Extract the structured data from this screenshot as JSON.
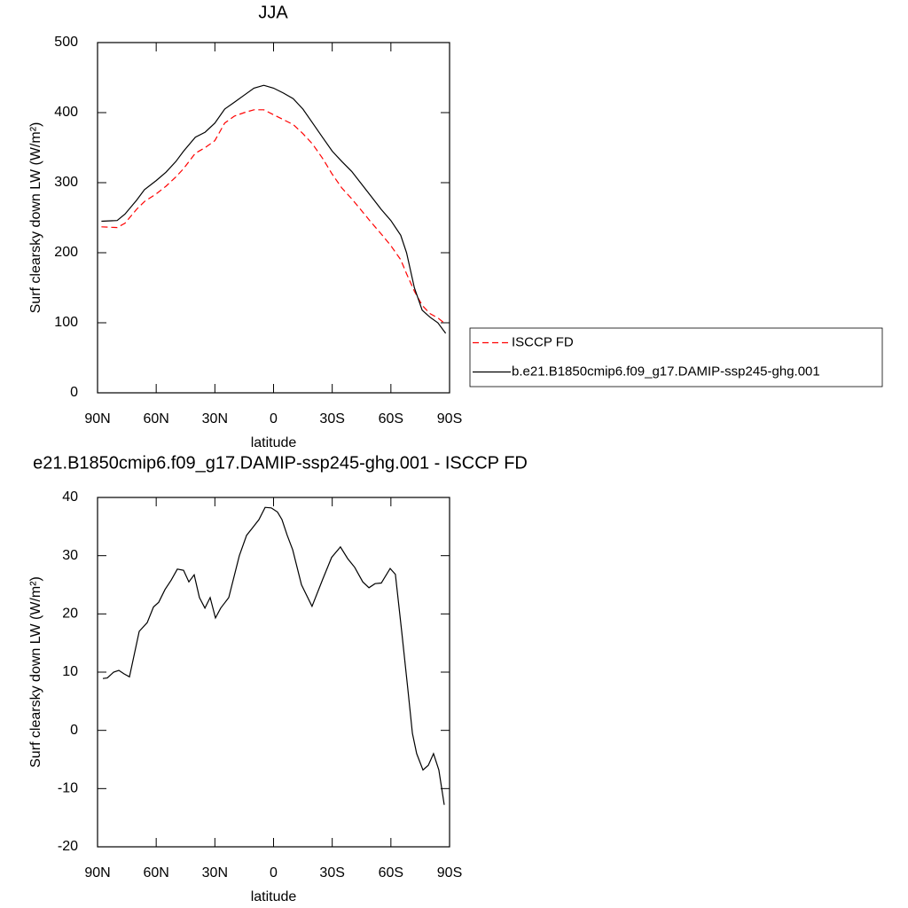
{
  "chart_data": [
    {
      "type": "line",
      "title": "JJA",
      "xlabel": "latitude",
      "ylabel": "Surf clearsky down LW (W/m²)",
      "xlim": [
        90,
        -90
      ],
      "ylim": [
        0,
        500
      ],
      "xticks": [
        {
          "value": 90,
          "label": "90N"
        },
        {
          "value": 60,
          "label": "60N"
        },
        {
          "value": 30,
          "label": "30N"
        },
        0,
        {
          "value": -30,
          "label": "30S"
        },
        {
          "value": -60,
          "label": "60S"
        },
        {
          "value": -90,
          "label": "90S"
        }
      ],
      "yticks": [
        0,
        100,
        200,
        300,
        400,
        500
      ],
      "legend": "right",
      "x": [
        88,
        80,
        76,
        70,
        66,
        60,
        55,
        50,
        46,
        40,
        35,
        30,
        25,
        20,
        15,
        10,
        5,
        0,
        -5,
        -10,
        -15,
        -20,
        -25,
        -30,
        -35,
        -40,
        -45,
        -50,
        -55,
        -60,
        -65,
        -68,
        -72,
        -76,
        -80,
        -84,
        -88
      ],
      "series": [
        {
          "name": "ISCCP FD",
          "color": "#ff0000",
          "dash": true,
          "values": [
            237,
            236,
            242,
            262,
            273,
            284,
            295,
            308,
            320,
            342,
            350,
            360,
            385,
            395,
            400,
            404,
            404,
            397,
            390,
            383,
            370,
            355,
            335,
            312,
            292,
            277,
            260,
            243,
            227,
            210,
            190,
            170,
            145,
            125,
            113,
            107,
            98
          ]
        },
        {
          "name": "b.e21.B1850cmip6.f09_g17.DAMIP-ssp245-ghg.001",
          "color": "#000000",
          "dash": false,
          "values": [
            245,
            246,
            255,
            275,
            290,
            303,
            315,
            330,
            345,
            365,
            372,
            385,
            405,
            415,
            425,
            435,
            439,
            435,
            428,
            420,
            405,
            385,
            365,
            345,
            330,
            316,
            298,
            280,
            262,
            246,
            225,
            200,
            150,
            118,
            108,
            100,
            85
          ]
        }
      ]
    },
    {
      "type": "line",
      "title": "e21.B1850cmip6.f09_g17.DAMIP-ssp245-ghg.001 - ISCCP FD",
      "xlabel": "latitude",
      "ylabel": "Surf clearsky down LW (W/m²)",
      "xlim": [
        90,
        -90
      ],
      "ylim": [
        -20,
        40
      ],
      "xticks": [
        {
          "value": 90,
          "label": "90N"
        },
        {
          "value": 60,
          "label": "60N"
        },
        {
          "value": 30,
          "label": "30N"
        },
        0,
        {
          "value": -30,
          "label": "30S"
        },
        {
          "value": -60,
          "label": "60S"
        },
        {
          "value": -90,
          "label": "90S"
        }
      ],
      "yticks": [
        -20,
        -10,
        0,
        10,
        20,
        30,
        40
      ],
      "x": [
        87.3,
        85,
        81.8,
        79.1,
        76.4,
        73.7,
        68.7,
        64.6,
        61.4,
        58.7,
        55.5,
        52.3,
        49.2,
        46,
        43.3,
        40.6,
        37.9,
        35.1,
        32.4,
        29.7,
        27,
        22.9,
        17.5,
        13.8,
        10.7,
        7.5,
        4.3,
        1.2,
        -2,
        -4.3,
        -7,
        -9.8,
        -14.3,
        -19.7,
        -25.2,
        -29.7,
        -34.2,
        -37.9,
        -41.5,
        -45.6,
        -48.8,
        -51.9,
        -55.1,
        -59.6,
        -62.3,
        -65.5,
        -68.7,
        -71,
        -73.2,
        -76.4,
        -79.1,
        -81.8,
        -84.5,
        -87.3
      ],
      "series": [
        {
          "color": "#000000",
          "values": [
            8.9,
            9.0,
            10,
            10.3,
            9.7,
            9.2,
            17,
            18.5,
            21.2,
            22,
            24.2,
            25.8,
            27.7,
            27.5,
            25.5,
            26.7,
            22.8,
            21,
            22.8,
            19.3,
            21,
            22.8,
            30,
            33.5,
            34.8,
            36.2,
            38.3,
            38.2,
            37.5,
            36.2,
            33.5,
            31,
            25,
            21.3,
            26,
            29.7,
            31.5,
            29.5,
            28,
            25.5,
            24.5,
            25.2,
            25.3,
            27.8,
            26.8,
            17,
            7,
            -0.5,
            -4,
            -6.8,
            -6,
            -4,
            -6.8,
            -12.8
          ]
        }
      ]
    }
  ]
}
